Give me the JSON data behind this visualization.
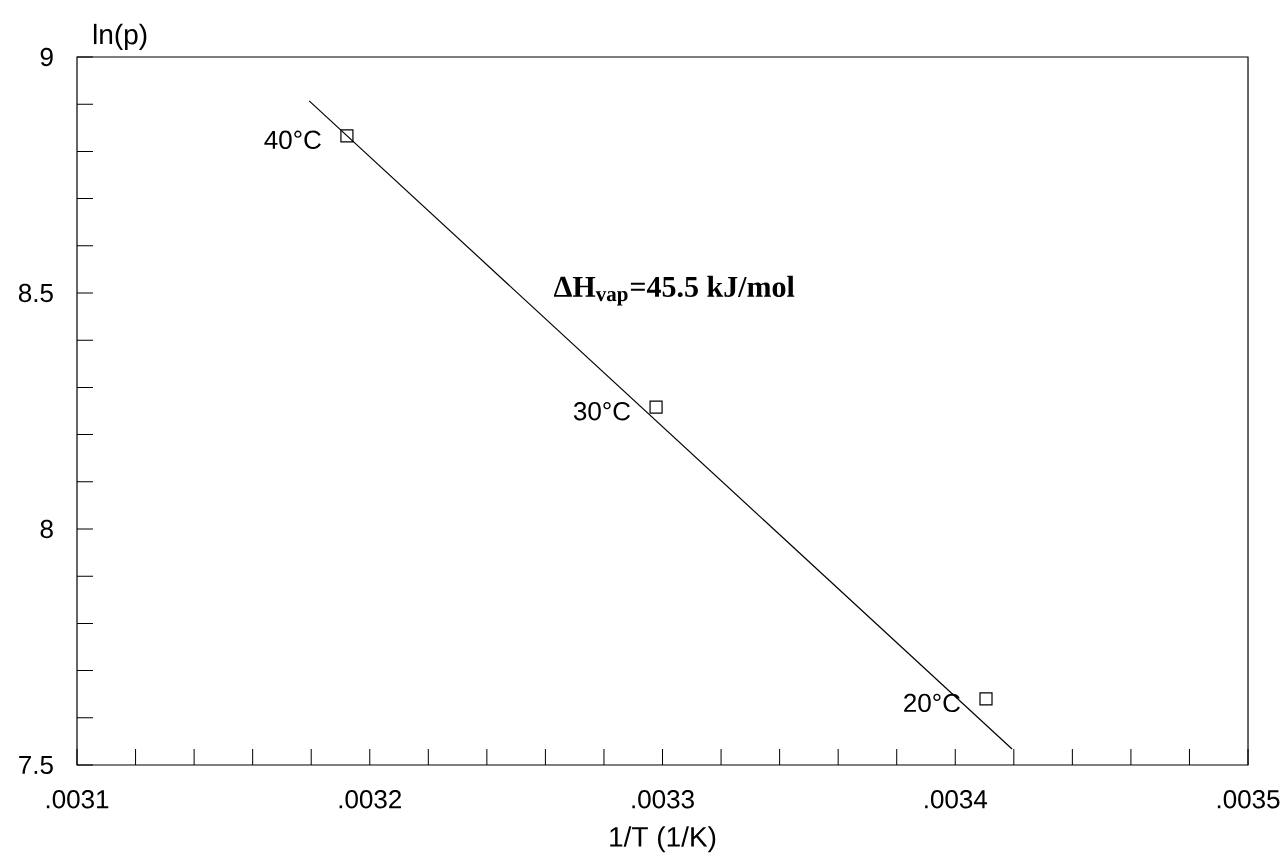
{
  "chart_data": {
    "type": "scatter",
    "xlabel": "1/T (1/K)",
    "ylabel": "ln(p)",
    "series": [
      {
        "type": "line",
        "color": "#000000",
        "x": [
          0.0031793,
          0.0034194
        ],
        "values": [
          8.907,
          7.534
        ]
      },
      {
        "color": "#000000",
        "marker": "square",
        "x": [
          0.0031922,
          0.0032978,
          0.0034105
        ],
        "values": [
          8.833,
          8.258,
          7.64
        ]
      }
    ],
    "annotations": [
      {
        "text": "40°C",
        "x": 0.0031922,
        "y": 8.833
      },
      {
        "text": "30°C",
        "x": 0.0032978,
        "y": 8.258
      },
      {
        "text": "20°C",
        "x": 0.0034105,
        "y": 7.64
      },
      "ΔH$_{vap}$=45.5 kJ/mol"
    ],
    "xlim": [
      0.0031,
      0.0035
    ],
    "ylim": [
      7.5,
      9
    ],
    "xticks": [
      {
        "value": 0.0031,
        "label": ".0031"
      },
      {
        "value": 0.00312,
        "label": null
      },
      {
        "value": 0.00314,
        "label": null
      },
      {
        "value": 0.00316,
        "label": null
      },
      {
        "value": 0.00318,
        "label": null
      },
      {
        "value": 0.0032,
        "label": ".0032"
      },
      {
        "value": 0.00322,
        "label": null
      },
      {
        "value": 0.00324,
        "label": null
      },
      {
        "value": 0.00326,
        "label": null
      },
      {
        "value": 0.00328,
        "label": null
      },
      {
        "value": 0.0033,
        "label": ".0033"
      },
      {
        "value": 0.00332,
        "label": null
      },
      {
        "value": 0.00334,
        "label": null
      },
      {
        "value": 0.00336,
        "label": null
      },
      {
        "value": 0.00338,
        "label": null
      },
      {
        "value": 0.0034,
        "label": ".0034"
      },
      {
        "value": 0.00342,
        "label": null
      },
      {
        "value": 0.00344,
        "label": null
      },
      {
        "value": 0.00346,
        "label": null
      },
      {
        "value": 0.00348,
        "label": null
      },
      {
        "value": 0.0035,
        "label": ".0035"
      }
    ],
    "yticks": [
      7.5,
      {
        "value": 7.6,
        "label": null
      },
      {
        "value": 7.7,
        "label": null
      },
      {
        "value": 7.8,
        "label": null
      },
      {
        "value": 7.9,
        "label": null
      },
      8,
      {
        "value": 8.1,
        "label": null
      },
      {
        "value": 8.2,
        "label": null
      },
      {
        "value": 8.3,
        "label": null
      },
      {
        "value": 8.4,
        "label": null
      },
      8.5,
      {
        "value": 8.6,
        "label": null
      },
      {
        "value": 8.7,
        "label": null
      },
      {
        "value": 8.8,
        "label": null
      },
      {
        "value": 8.9,
        "label": null
      },
      9
    ],
    "grid": false
  }
}
